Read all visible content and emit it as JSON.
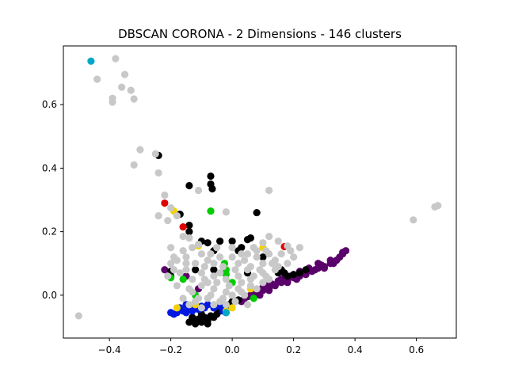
{
  "chart_data": {
    "type": "scatter",
    "title": "DBSCAN CORONA - 2 Dimensions - 146 clusters",
    "xlabel": "",
    "ylabel": "",
    "xlim": [
      -0.55,
      0.73
    ],
    "ylim": [
      -0.135,
      0.785
    ],
    "x_ticks": [
      "−0.4",
      "−0.2",
      "0.0",
      "0.2",
      "0.4",
      "0.6"
    ],
    "y_ticks": [
      "0.0",
      "0.2",
      "0.4",
      "0.6"
    ],
    "grid": false,
    "legend": "none",
    "colors": {
      "gray": "#c8c8c8",
      "black": "#000000",
      "purple": "#5a006a",
      "blue": "#0018e0",
      "green": "#00cc00",
      "yellow": "#f2d200",
      "red": "#e00000",
      "cyan": "#00a8c8"
    },
    "series": [
      {
        "color": "purple",
        "points": [
          [
            0.04,
            -0.01
          ],
          [
            0.06,
            0.0
          ],
          [
            0.08,
            0.005
          ],
          [
            0.1,
            0.015
          ],
          [
            0.12,
            0.02
          ],
          [
            0.14,
            0.03
          ],
          [
            0.16,
            0.04
          ],
          [
            0.18,
            0.045
          ],
          [
            0.2,
            0.055
          ],
          [
            0.22,
            0.06
          ],
          [
            0.24,
            0.07
          ],
          [
            0.26,
            0.075
          ],
          [
            0.28,
            0.085
          ],
          [
            0.3,
            0.09
          ],
          [
            0.32,
            0.1
          ],
          [
            0.34,
            0.11
          ],
          [
            0.35,
            0.12
          ],
          [
            0.36,
            0.13
          ],
          [
            0.37,
            0.14
          ],
          [
            0.36,
            0.135
          ],
          [
            0.32,
            0.11
          ],
          [
            0.28,
            0.1
          ],
          [
            0.25,
            0.085
          ],
          [
            0.22,
            0.075
          ],
          [
            0.19,
            0.06
          ],
          [
            0.16,
            0.05
          ],
          [
            0.13,
            0.035
          ],
          [
            0.1,
            0.025
          ],
          [
            0.07,
            0.01
          ],
          [
            0.05,
            -0.005
          ],
          [
            0.12,
            0.015
          ],
          [
            0.18,
            0.04
          ],
          [
            0.24,
            0.065
          ],
          [
            0.3,
            0.085
          ],
          [
            0.15,
            0.045
          ],
          [
            0.21,
            0.05
          ],
          [
            0.27,
            0.08
          ],
          [
            0.33,
            0.1
          ],
          [
            0.09,
            0.0
          ],
          [
            0.11,
            0.03
          ],
          [
            0.17,
            0.055
          ],
          [
            0.23,
            0.07
          ],
          [
            0.29,
            0.095
          ],
          [
            0.03,
            -0.02
          ],
          [
            -0.22,
            0.08
          ],
          [
            -0.15,
            0.06
          ],
          [
            -0.11,
            0.02
          ]
        ]
      },
      {
        "color": "black",
        "points": [
          [
            -0.14,
            -0.085
          ],
          [
            -0.12,
            -0.08
          ],
          [
            -0.1,
            -0.085
          ],
          [
            -0.08,
            -0.08
          ],
          [
            -0.06,
            -0.07
          ],
          [
            -0.05,
            -0.06
          ],
          [
            -0.04,
            -0.05
          ],
          [
            -0.03,
            -0.045
          ],
          [
            -0.02,
            -0.04
          ],
          [
            -0.01,
            -0.03
          ],
          [
            -0.11,
            -0.075
          ],
          [
            -0.09,
            -0.07
          ],
          [
            -0.07,
            -0.065
          ],
          [
            -0.13,
            -0.07
          ],
          [
            -0.1,
            -0.06
          ],
          [
            -0.08,
            -0.09
          ],
          [
            -0.12,
            -0.09
          ],
          [
            0.0,
            -0.02
          ],
          [
            0.02,
            -0.015
          ],
          [
            0.16,
            0.08
          ],
          [
            0.17,
            0.07
          ],
          [
            0.18,
            0.06
          ],
          [
            0.15,
            0.07
          ],
          [
            0.2,
            0.065
          ],
          [
            0.22,
            0.07
          ],
          [
            0.24,
            0.08
          ],
          [
            -0.07,
            0.375
          ],
          [
            -0.07,
            0.35
          ],
          [
            -0.065,
            0.335
          ],
          [
            -0.14,
            0.345
          ],
          [
            -0.24,
            0.44
          ],
          [
            0.08,
            0.26
          ],
          [
            -0.17,
            0.255
          ],
          [
            -0.14,
            0.22
          ],
          [
            -0.14,
            0.2
          ],
          [
            -0.1,
            0.17
          ],
          [
            -0.08,
            0.165
          ],
          [
            -0.06,
            0.14
          ],
          [
            -0.04,
            0.17
          ],
          [
            0.0,
            0.17
          ],
          [
            0.03,
            0.15
          ],
          [
            0.05,
            0.175
          ],
          [
            0.06,
            0.18
          ],
          [
            0.02,
            0.14
          ],
          [
            -0.2,
            0.075
          ],
          [
            -0.2,
            0.06
          ],
          [
            -0.12,
            0.08
          ],
          [
            -0.06,
            0.08
          ],
          [
            0.05,
            0.07
          ],
          [
            0.1,
            0.12
          ]
        ]
      },
      {
        "color": "blue",
        "points": [
          [
            -0.2,
            -0.055
          ],
          [
            -0.18,
            -0.055
          ],
          [
            -0.16,
            -0.05
          ],
          [
            -0.14,
            -0.045
          ],
          [
            -0.12,
            -0.04
          ],
          [
            -0.1,
            -0.035
          ],
          [
            -0.08,
            -0.03
          ],
          [
            -0.06,
            -0.04
          ],
          [
            -0.19,
            -0.06
          ],
          [
            -0.17,
            -0.04
          ],
          [
            -0.15,
            -0.03
          ],
          [
            -0.13,
            -0.05
          ],
          [
            -0.11,
            -0.045
          ],
          [
            -0.09,
            -0.04
          ],
          [
            -0.03,
            -0.05
          ],
          [
            -0.02,
            -0.055
          ],
          [
            -0.04,
            -0.035
          ],
          [
            -0.15,
            -0.055
          ]
        ]
      },
      {
        "color": "green",
        "points": [
          [
            -0.07,
            0.265
          ],
          [
            -0.2,
            0.055
          ],
          [
            -0.16,
            0.05
          ],
          [
            -0.025,
            0.1
          ],
          [
            -0.02,
            0.08
          ],
          [
            -0.02,
            0.065
          ],
          [
            0.0,
            0.04
          ],
          [
            -0.12,
            0.0
          ],
          [
            0.07,
            -0.01
          ]
        ]
      },
      {
        "color": "yellow",
        "points": [
          [
            -0.19,
            0.265
          ],
          [
            -0.11,
            0.155
          ],
          [
            -0.02,
            -0.05
          ],
          [
            0.0,
            -0.04
          ],
          [
            0.1,
            0.15
          ],
          [
            -0.12,
            -0.03
          ],
          [
            0.06,
            0.02
          ],
          [
            -0.18,
            -0.04
          ]
        ]
      },
      {
        "color": "red",
        "points": [
          [
            -0.22,
            0.29
          ],
          [
            -0.16,
            0.215
          ],
          [
            0.17,
            0.153
          ]
        ]
      },
      {
        "color": "cyan",
        "points": [
          [
            -0.46,
            0.737
          ],
          [
            -0.02,
            -0.055
          ]
        ]
      },
      {
        "color": "gray",
        "points": [
          [
            -0.38,
            0.745
          ],
          [
            -0.44,
            0.68
          ],
          [
            -0.35,
            0.695
          ],
          [
            -0.36,
            0.655
          ],
          [
            -0.33,
            0.645
          ],
          [
            -0.39,
            0.62
          ],
          [
            -0.39,
            0.608
          ],
          [
            -0.32,
            0.618
          ],
          [
            -0.3,
            0.458
          ],
          [
            -0.25,
            0.445
          ],
          [
            -0.32,
            0.41
          ],
          [
            -0.24,
            0.385
          ],
          [
            -0.22,
            0.315
          ],
          [
            -0.2,
            0.275
          ],
          [
            -0.24,
            0.25
          ],
          [
            -0.21,
            0.235
          ],
          [
            -0.18,
            0.25
          ],
          [
            -0.11,
            0.33
          ],
          [
            -0.02,
            0.262
          ],
          [
            0.12,
            0.33
          ],
          [
            0.59,
            0.237
          ],
          [
            0.67,
            0.282
          ],
          [
            0.66,
            0.278
          ],
          [
            -0.5,
            -0.065
          ],
          [
            -0.2,
            0.15
          ],
          [
            -0.16,
            0.185
          ],
          [
            -0.14,
            0.18
          ],
          [
            0.12,
            0.185
          ],
          [
            0.15,
            0.17
          ],
          [
            0.18,
            0.155
          ],
          [
            0.1,
            0.165
          ],
          [
            0.2,
            0.12
          ],
          [
            0.22,
            0.15
          ],
          [
            0.08,
            0.14
          ],
          [
            0.05,
            0.13
          ],
          [
            0.0,
            0.12
          ],
          [
            -0.05,
            0.15
          ],
          [
            -0.1,
            0.13
          ],
          [
            -0.15,
            0.12
          ],
          [
            -0.18,
            0.11
          ],
          [
            -0.2,
            0.1
          ],
          [
            -0.12,
            0.1
          ],
          [
            -0.08,
            0.11
          ],
          [
            -0.04,
            0.12
          ],
          [
            0.02,
            0.1
          ],
          [
            0.06,
            0.09
          ],
          [
            0.1,
            0.1
          ],
          [
            0.14,
            0.11
          ],
          [
            0.18,
            0.1
          ],
          [
            -0.15,
            0.08
          ],
          [
            -0.1,
            0.07
          ],
          [
            -0.06,
            0.06
          ],
          [
            -0.02,
            0.05
          ],
          [
            0.02,
            0.06
          ],
          [
            0.06,
            0.05
          ],
          [
            0.1,
            0.07
          ],
          [
            0.14,
            0.08
          ],
          [
            -0.18,
            0.03
          ],
          [
            -0.14,
            0.02
          ],
          [
            -0.1,
            0.03
          ],
          [
            -0.06,
            0.02
          ],
          [
            -0.02,
            0.01
          ],
          [
            0.02,
            0.02
          ],
          [
            0.06,
            0.03
          ],
          [
            0.1,
            0.04
          ],
          [
            -0.16,
            -0.01
          ],
          [
            -0.12,
            -0.02
          ],
          [
            -0.08,
            -0.01
          ],
          [
            -0.04,
            -0.02
          ],
          [
            0.0,
            0.0
          ],
          [
            0.04,
            0.0
          ],
          [
            -0.14,
            -0.03
          ],
          [
            -0.1,
            -0.04
          ],
          [
            -0.06,
            -0.03
          ],
          [
            -0.02,
            -0.03
          ],
          [
            -0.17,
            0.07
          ],
          [
            -0.13,
            0.05
          ],
          [
            -0.09,
            0.05
          ],
          [
            -0.05,
            0.04
          ],
          [
            -0.01,
            0.03
          ],
          [
            0.03,
            0.04
          ],
          [
            0.07,
            0.06
          ],
          [
            0.11,
            0.06
          ],
          [
            0.15,
            0.09
          ],
          [
            -0.19,
            0.12
          ],
          [
            -0.16,
            0.14
          ],
          [
            -0.13,
            0.15
          ],
          [
            -0.07,
            0.13
          ],
          [
            -0.03,
            0.09
          ],
          [
            0.01,
            0.08
          ],
          [
            0.04,
            0.11
          ],
          [
            0.08,
            0.12
          ],
          [
            0.12,
            0.13
          ],
          [
            0.16,
            0.13
          ],
          [
            0.19,
            0.14
          ],
          [
            -0.11,
            0.16
          ],
          [
            -0.09,
            0.09
          ],
          [
            -0.06,
            0.1
          ],
          [
            0.0,
            0.15
          ],
          [
            0.03,
            0.13
          ],
          [
            0.09,
            0.08
          ],
          [
            0.13,
            0.1
          ],
          [
            -0.15,
            0.1
          ],
          [
            -0.19,
            0.08
          ],
          [
            -0.04,
            0.07
          ],
          [
            0.05,
            0.08
          ],
          [
            0.12,
            0.05
          ],
          [
            -0.08,
            0.04
          ],
          [
            -0.13,
            0.01
          ],
          [
            -0.03,
            -0.01
          ],
          [
            0.01,
            -0.02
          ],
          [
            0.05,
            -0.03
          ],
          [
            0.08,
            0.02
          ],
          [
            -0.07,
            0.0
          ],
          [
            -0.11,
            -0.01
          ],
          [
            0.03,
            0.01
          ],
          [
            -0.21,
            0.06
          ],
          [
            0.07,
            0.15
          ],
          [
            0.11,
            0.14
          ]
        ]
      }
    ]
  }
}
